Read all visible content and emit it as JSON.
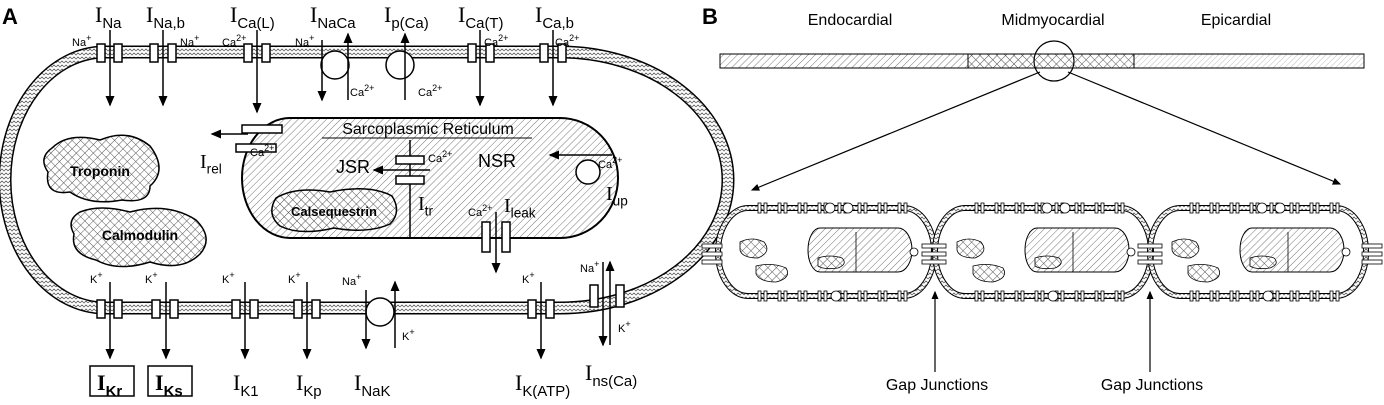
{
  "panel_a": {
    "label": "A",
    "currents_top": [
      {
        "base": "I",
        "sub": "Na"
      },
      {
        "base": "I",
        "sub": "Na,b"
      },
      {
        "base": "I",
        "sub": "Ca(L)"
      },
      {
        "base": "I",
        "sub": "NaCa"
      },
      {
        "base": "I",
        "sub": "p(Ca)"
      },
      {
        "base": "I",
        "sub": "Ca(T)"
      },
      {
        "base": "I",
        "sub": "Ca,b"
      }
    ],
    "currents_bottom": [
      {
        "base": "I",
        "sub": "Kr",
        "boxed": true
      },
      {
        "base": "I",
        "sub": "Ks",
        "boxed": true
      },
      {
        "base": "I",
        "sub": "K1"
      },
      {
        "base": "I",
        "sub": "Kp"
      },
      {
        "base": "I",
        "sub": "NaK"
      },
      {
        "base": "I",
        "sub": "K(ATP)"
      },
      {
        "base": "I",
        "sub": "ns(Ca)"
      }
    ],
    "sr_currents": {
      "rel": {
        "base": "I",
        "sub": "rel"
      },
      "tr": {
        "base": "I",
        "sub": "tr"
      },
      "leak": {
        "base": "I",
        "sub": "leak"
      },
      "up": {
        "base": "I",
        "sub": "up"
      }
    },
    "ions": {
      "na": "Na",
      "ca": "Ca",
      "k": "K",
      "plus": "+",
      "two_plus": "2+"
    },
    "sr_title": "Sarcoplasmic Reticulum",
    "jsr": "JSR",
    "nsr": "NSR",
    "buffers": {
      "troponin": "Troponin",
      "calmodulin": "Calmodulin",
      "calsequestrin": "Calsequestrin"
    }
  },
  "panel_b": {
    "label": "B",
    "regions": [
      "Endocardial",
      "Midmyocardial",
      "Epicardial"
    ],
    "gap_junction_label": "Gap Junctions"
  }
}
